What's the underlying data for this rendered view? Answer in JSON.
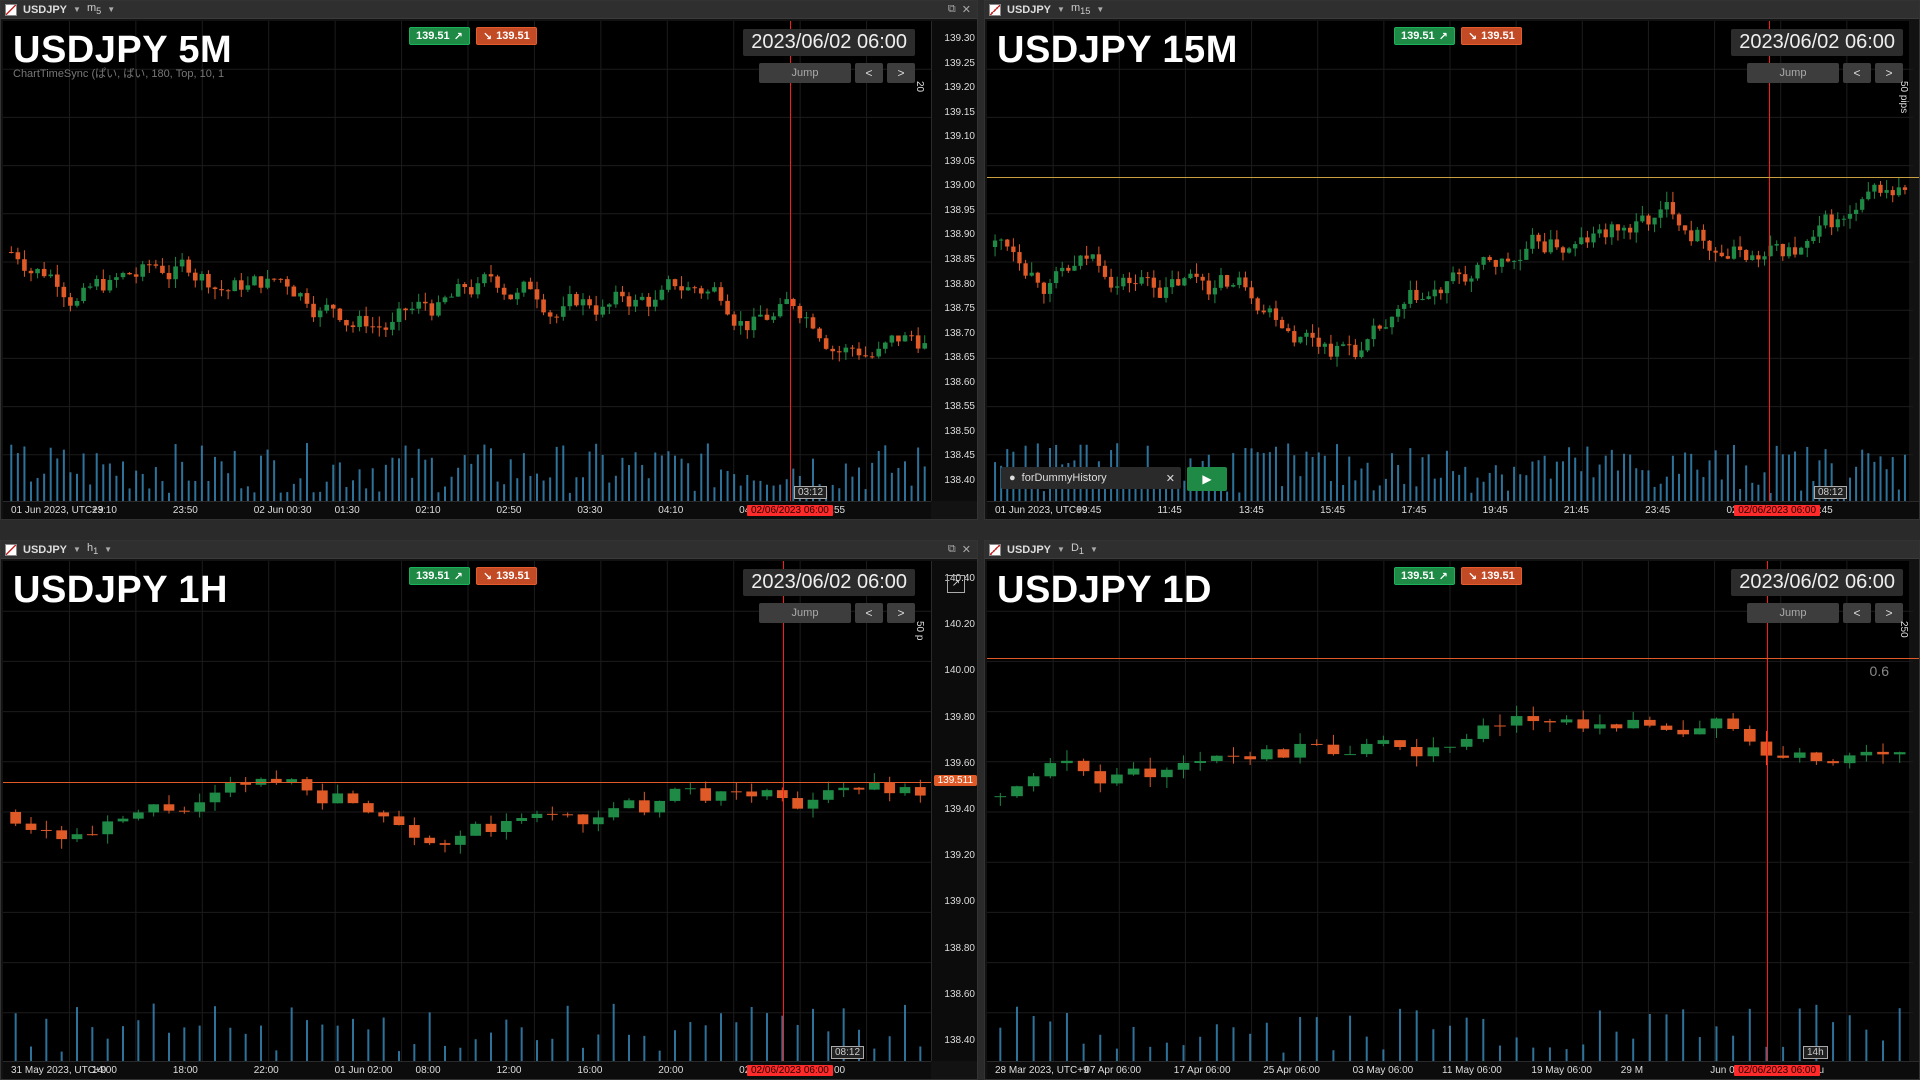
{
  "panes": [
    {
      "id": "p5m",
      "symbol": "USDJPY",
      "tf_label": "m",
      "tf_sub": "5",
      "big_label": "USDJPY 5M",
      "date": "2023/06/02 06:00",
      "jump": "Jump",
      "buy": "139.51",
      "sell": "139.51",
      "sub_text": "ChartTimeSync (ぱい, ばい, 180, Top, 10, 1",
      "price_ticks": [
        "139.30",
        "139.25",
        "139.20",
        "139.15",
        "139.10",
        "139.05",
        "139.00",
        "138.95",
        "138.90",
        "138.85",
        "138.80",
        "138.75",
        "138.70",
        "138.65",
        "138.60",
        "138.55",
        "138.50",
        "138.45",
        "138.40"
      ],
      "time_ticks": [
        "01 Jun 2023, UTC+9",
        "23:10",
        "23:50",
        "02 Jun 00:30",
        "01:30",
        "02:10",
        "02:50",
        "03:30",
        "04:10",
        "04:50",
        "06:55"
      ],
      "active_time": "02/06/2023 06:00",
      "time_badge": "03:12",
      "pip": "20"
    },
    {
      "id": "p15m",
      "symbol": "USDJPY",
      "tf_label": "m",
      "tf_sub": "15",
      "big_label": "USDJPY 15M",
      "date": "2023/06/02 06:00",
      "jump": "Jump",
      "buy": "139.51",
      "sell": "139.51",
      "time_ticks": [
        "01 Jun 2023, UTC+9",
        "09:45",
        "11:45",
        "13:45",
        "15:45",
        "17:45",
        "19:45",
        "21:45",
        "23:45",
        "02 Jun 01:45",
        "08:45"
      ],
      "active_time": "02/06/2023 06:00",
      "time_badge": "08:12",
      "pip": "50 pips",
      "play_label": "forDummyHistory"
    },
    {
      "id": "p1h",
      "symbol": "USDJPY",
      "tf_label": "h",
      "tf_sub": "1",
      "big_label": "USDJPY 1H",
      "date": "2023/06/02 06:00",
      "jump": "Jump",
      "buy": "139.51",
      "sell": "139.51",
      "price_ticks": [
        "140.40",
        "140.20",
        "140.00",
        "139.80",
        "139.60",
        "139.40",
        "139.20",
        "139.00",
        "138.80",
        "138.60",
        "138.40"
      ],
      "current_price": "139.511",
      "time_ticks": [
        "31 May 2023, UTC+9",
        "14:00",
        "18:00",
        "22:00",
        "01 Jun 02:00",
        "08:00",
        "12:00",
        "16:00",
        "20:00",
        "02 Jun",
        "12:00"
      ],
      "active_time": "02/06/2023 06:00",
      "time_badge": "08:12",
      "pip": "50 p"
    },
    {
      "id": "p1d",
      "symbol": "USDJPY",
      "tf_label": "D",
      "tf_sub": "1",
      "big_label": "USDJPY 1D",
      "date": "2023/06/02 06:00",
      "jump": "Jump",
      "buy": "139.51",
      "sell": "139.51",
      "time_ticks": [
        "28 Mar 2023, UTC+9",
        "07 Apr 06:00",
        "17 Apr 06:00",
        "25 Apr 06:00",
        "03 May 06:00",
        "11 May 06:00",
        "19 May 06:00",
        "29 M",
        "Jun 06:00",
        "14 Ju"
      ],
      "active_time": "02/06/2023 06:00",
      "time_badge": "14h",
      "pip": "250",
      "fib_label": "0.6"
    }
  ],
  "colors": {
    "up": "#1e8a45",
    "down": "#e05a28",
    "volume": "#3a8fc0",
    "cursor_line": "#ff1a1a",
    "hline_orange": "#e05a28",
    "hline_gold": "#c8a040"
  }
}
